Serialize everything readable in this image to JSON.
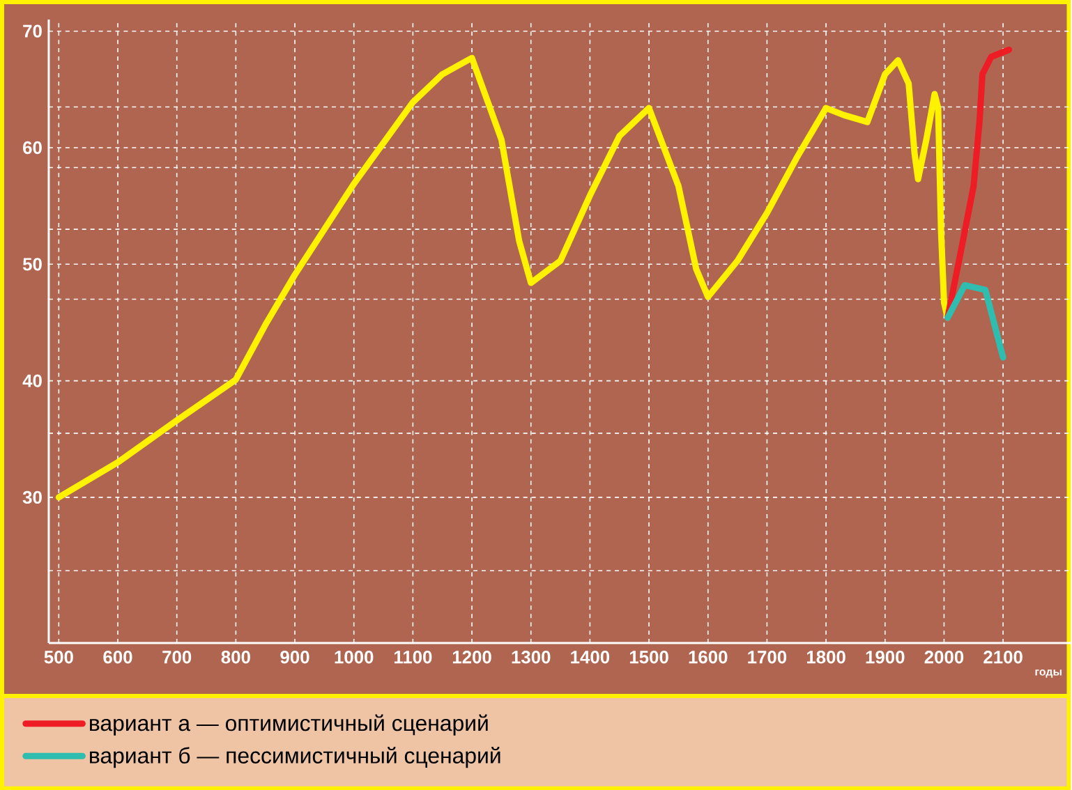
{
  "chart_data": {
    "type": "line",
    "xlabel": "годы",
    "xlim": [
      483,
      2215
    ],
    "ylim": [
      17.5,
      71
    ],
    "xticks": [
      500,
      600,
      700,
      800,
      900,
      1000,
      1100,
      1200,
      1300,
      1400,
      1500,
      1600,
      1700,
      1800,
      1900,
      2000,
      2100
    ],
    "yticks": [
      {
        "value": 23.7,
        "label": null
      },
      30,
      {
        "value": 35.5,
        "label": null
      },
      40,
      {
        "value": 47,
        "label": null
      },
      50,
      {
        "value": 53,
        "label": null
      },
      {
        "value": 58.3,
        "label": null
      },
      60,
      {
        "value": 63.5,
        "label": null
      },
      70
    ],
    "grid": true,
    "legend": "bottom",
    "series": [
      {
        "color": "#fff200",
        "x": [
          500,
          600,
          700,
          800,
          850,
          900,
          1000,
          1100,
          1150,
          1200,
          1250,
          1280,
          1300,
          1350,
          1400,
          1450,
          1500,
          1550,
          1580,
          1600,
          1650,
          1700,
          1750,
          1800,
          1830,
          1870,
          1900,
          1922,
          1940,
          1950,
          1956,
          1970,
          1984,
          1990,
          1995,
          2000,
          2006
        ],
        "values": [
          30,
          33,
          36.6,
          40.1,
          44.8,
          49.1,
          56.9,
          63.9,
          66.3,
          67.7,
          60.7,
          52,
          48.4,
          50.3,
          55.9,
          61,
          63.4,
          56.7,
          49.6,
          47.2,
          50.3,
          54.4,
          59.1,
          63.4,
          62.8,
          62.2,
          66.3,
          67.5,
          65.5,
          59.5,
          57.3,
          60.7,
          64.6,
          63.4,
          52.7,
          46.7,
          45.4
        ]
      },
      {
        "name": "вариант а — оптимистичный сценарий",
        "color": "#ee1c25",
        "x": [
          2006,
          2030,
          2050,
          2060,
          2065,
          2080,
          2110
        ],
        "values": [
          45.4,
          51.5,
          56.7,
          62.2,
          66.3,
          67.8,
          68.4
        ]
      },
      {
        "name": "вариант б — пессимистичный сценарий",
        "color": "#2ebdaf",
        "x": [
          2006,
          2035,
          2070,
          2100
        ],
        "values": [
          45.4,
          48.2,
          47.8,
          42
        ]
      }
    ],
    "line_style": "solid"
  }
}
